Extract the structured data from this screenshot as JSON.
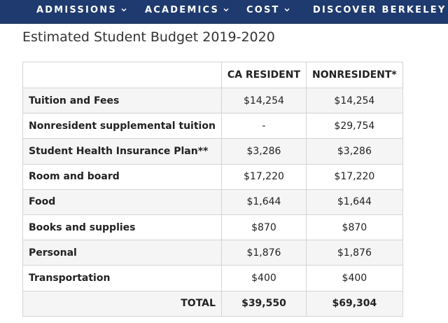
{
  "nav": {
    "items": [
      {
        "label": "ADMISSIONS"
      },
      {
        "label": "ACADEMICS"
      },
      {
        "label": "COST"
      },
      {
        "label": "DISCOVER BERKELEY"
      }
    ]
  },
  "page": {
    "title": "Estimated Student Budget 2019-2020"
  },
  "table": {
    "headers": [
      "",
      "CA RESIDENT",
      "NONRESIDENT*"
    ],
    "rows": [
      {
        "label": "Tuition and Fees",
        "resident": "$14,254",
        "nonresident": "$14,254"
      },
      {
        "label": "Nonresident supplemental tuition",
        "resident": "-",
        "nonresident": "$29,754"
      },
      {
        "label": "Student Health Insurance Plan**",
        "resident": "$3,286",
        "nonresident": "$3,286"
      },
      {
        "label": "Room and board",
        "resident": "$17,220",
        "nonresident": "$17,220"
      },
      {
        "label": "Food",
        "resident": "$1,644",
        "nonresident": "$1,644"
      },
      {
        "label": "Books and supplies",
        "resident": "$870",
        "nonresident": "$870"
      },
      {
        "label": "Personal",
        "resident": "$1,876",
        "nonresident": "$1,876"
      },
      {
        "label": "Transportation",
        "resident": "$400",
        "nonresident": "$400"
      }
    ],
    "total": {
      "label": "TOTAL",
      "resident": "$39,550",
      "nonresident": "$69,304"
    }
  },
  "colors": {
    "nav_background": "#1f3a6e",
    "nav_text": "#ffffff",
    "row_alt": "#f5f5f5",
    "border": "#d4d4d4"
  }
}
